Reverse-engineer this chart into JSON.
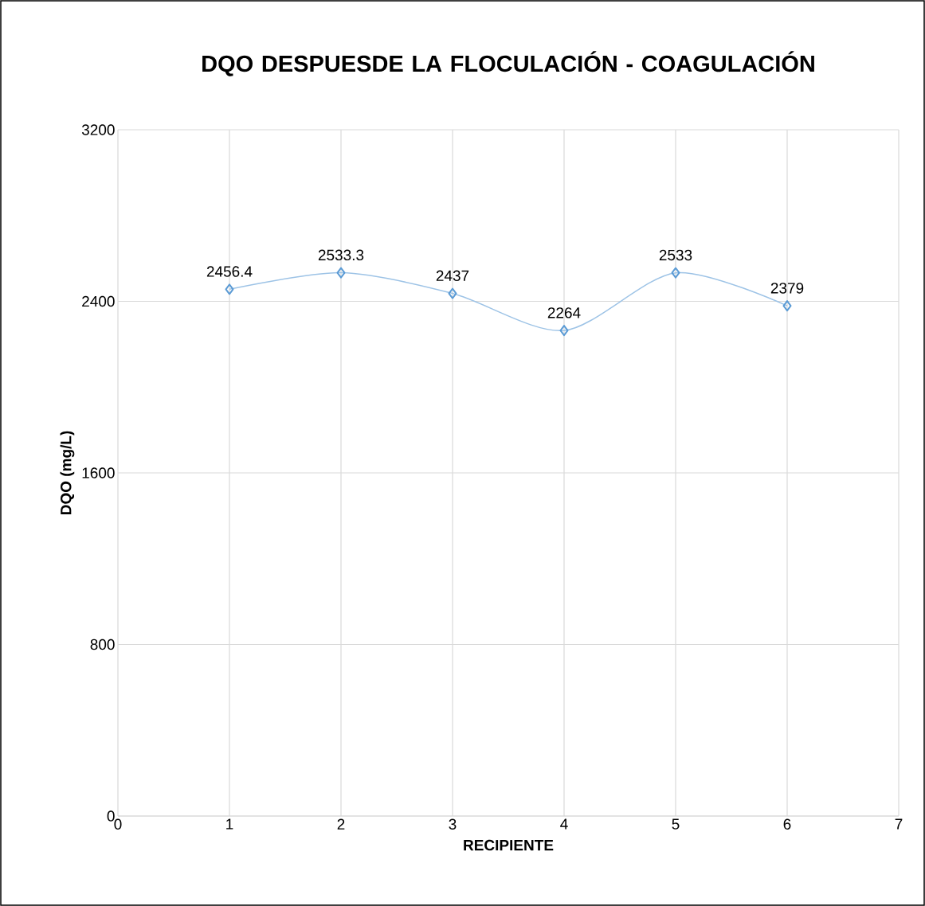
{
  "chart_data": {
    "type": "line",
    "title": "DQO DESPUESDE LA FLOCULACIÓN - COAGULACIÓN",
    "xlabel": "RECIPIENTE",
    "ylabel": "DQO (mg/L)",
    "x": [
      1,
      2,
      3,
      4,
      5,
      6
    ],
    "series": [
      {
        "color": "#5b9bd5",
        "values": [
          2456.4,
          2533.3,
          2437,
          2264,
          2533,
          2379
        ]
      }
    ],
    "xlim": [
      0,
      7
    ],
    "xticks": [
      0,
      1,
      2,
      3,
      4,
      5,
      6,
      7
    ],
    "ylim": [
      0,
      3200
    ],
    "yticks": [
      0,
      800,
      1600,
      2400,
      3200
    ],
    "grid": true,
    "marker": "diamond",
    "line_style": "solid",
    "data_labels": true
  }
}
